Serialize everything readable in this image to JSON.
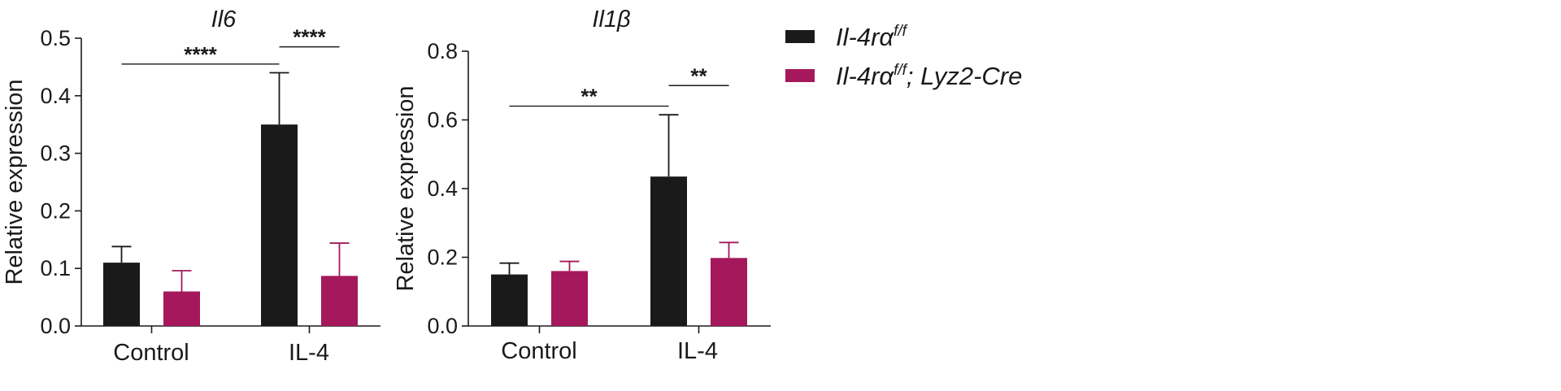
{
  "legend": {
    "entries": [
      {
        "base": "Il-4rα",
        "sup": "f/f",
        "rest": "",
        "color": "#1a1a1a"
      },
      {
        "base": "Il-4rα",
        "sup": "f/f",
        "rest": "; Lyz2-Cre",
        "color": "#a5185c"
      }
    ]
  },
  "chart_data": [
    {
      "type": "bar",
      "title": "Il6",
      "ylabel": "Relative expression",
      "xlabel": "",
      "ylim": [
        0,
        0.5
      ],
      "yticks": [
        "0.0",
        "0.1",
        "0.2",
        "0.3",
        "0.4",
        "0.5"
      ],
      "categories": [
        "Control",
        "IL-4"
      ],
      "series": [
        {
          "name": "Il-4rα f/f",
          "color": "#1a1a1a",
          "values": [
            0.11,
            0.35
          ],
          "errors": [
            0.028,
            0.09
          ]
        },
        {
          "name": "Il-4rα f/f; Lyz2-Cre",
          "color": "#a5185c",
          "values": [
            0.06,
            0.087
          ],
          "errors": [
            0.036,
            0.057
          ]
        }
      ],
      "significance": [
        {
          "label": "****",
          "from": [
            0,
            0
          ],
          "to": [
            1,
            0
          ],
          "y": 0.455
        },
        {
          "label": "****",
          "from": [
            1,
            0
          ],
          "to": [
            1,
            1
          ],
          "y": 0.485
        }
      ]
    },
    {
      "type": "bar",
      "title": "Il1β",
      "ylabel": "Relative expression",
      "xlabel": "",
      "ylim": [
        0,
        0.8
      ],
      "yticks": [
        "0.0",
        "0.2",
        "0.4",
        "0.6",
        "0.8"
      ],
      "categories": [
        "Control",
        "IL-4"
      ],
      "series": [
        {
          "name": "Il-4rα f/f",
          "color": "#1a1a1a",
          "values": [
            0.15,
            0.435
          ],
          "errors": [
            0.033,
            0.18
          ]
        },
        {
          "name": "Il-4rα f/f; Lyz2-Cre",
          "color": "#a5185c",
          "values": [
            0.16,
            0.198
          ],
          "errors": [
            0.028,
            0.045
          ]
        }
      ],
      "significance": [
        {
          "label": "**",
          "from": [
            0,
            0
          ],
          "to": [
            1,
            0
          ],
          "y": 0.64
        },
        {
          "label": "**",
          "from": [
            1,
            0
          ],
          "to": [
            1,
            1
          ],
          "y": 0.7
        }
      ]
    }
  ]
}
